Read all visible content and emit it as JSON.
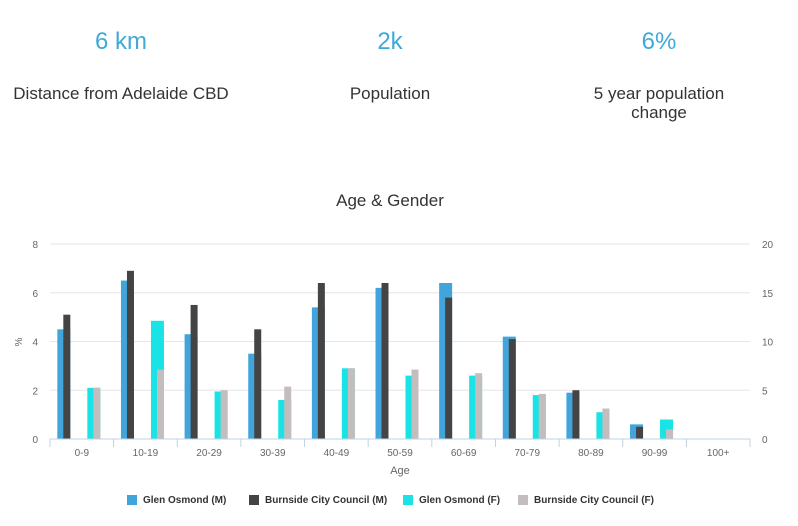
{
  "stats": [
    {
      "value": "6 km",
      "label": "Distance from Adelaide CBD"
    },
    {
      "value": "2k",
      "label": "Population"
    },
    {
      "value": "6%",
      "label": "5 year population change"
    }
  ],
  "colors": {
    "accent": "#3fa9d8",
    "glen_m": "#41a5dc",
    "burnside_m": "#444444",
    "glen_f": "#19e3e6",
    "burnside_f": "#c4bdbd"
  },
  "chart_data": {
    "type": "bar",
    "title": "Age & Gender",
    "xlabel": "Age",
    "ylabel": "%",
    "ylim": [
      0,
      8
    ],
    "y2lim": [
      0,
      20
    ],
    "yticks": [
      "0",
      "2",
      "4",
      "6",
      "8"
    ],
    "y2ticks": [
      "0",
      "5",
      "10",
      "15",
      "20"
    ],
    "grid": true,
    "legend": "bottom",
    "categories": [
      "0-9",
      "10-19",
      "20-29",
      "30-39",
      "40-49",
      "50-59",
      "60-69",
      "70-79",
      "80-89",
      "90-99",
      "100+"
    ],
    "series": [
      {
        "name": "Glen Osmond (M)",
        "values": [
          4.5,
          6.5,
          4.3,
          3.5,
          5.4,
          6.2,
          6.4,
          4.2,
          1.9,
          0.6,
          0
        ]
      },
      {
        "name": "Burnside City Council (M)",
        "values": [
          5.1,
          6.9,
          5.5,
          4.5,
          6.4,
          6.4,
          5.8,
          4.1,
          2.0,
          0.5,
          0
        ]
      },
      {
        "name": "Glen Osmond (F)",
        "values": [
          2.1,
          4.85,
          1.95,
          1.6,
          2.9,
          2.6,
          2.6,
          1.8,
          1.1,
          0.8,
          0
        ]
      },
      {
        "name": "Burnside City Council (F)",
        "values": [
          2.1,
          2.85,
          2.0,
          2.15,
          2.9,
          2.85,
          2.7,
          1.85,
          1.25,
          0.4,
          0
        ]
      }
    ]
  }
}
